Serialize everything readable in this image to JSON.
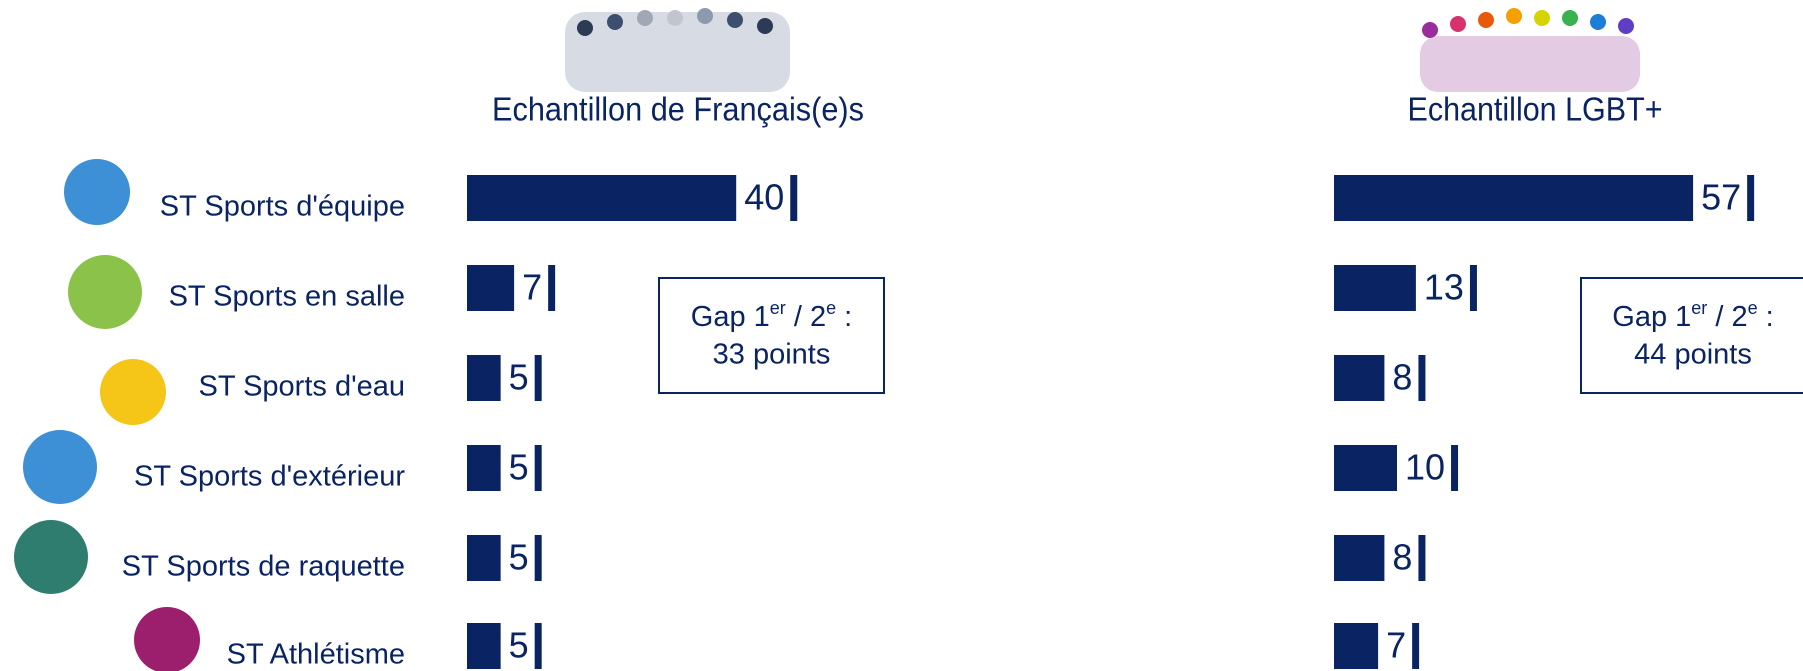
{
  "chart_data": [
    {
      "type": "bar",
      "orientation": "horizontal",
      "title": "Echantillon de Français(e)s",
      "categories": [
        "ST Sports d'équipe",
        "ST Sports en salle",
        "ST Sports d'eau",
        "ST Sports d'extérieur",
        "ST Sports de raquette",
        "ST Athlétisme"
      ],
      "values": [
        40,
        7,
        5,
        5,
        5,
        5
      ],
      "color": "#0a2463",
      "annotation": {
        "line1": [
          "Gap 1",
          "er",
          " / 2",
          "e",
          " :"
        ],
        "line2": "33 points"
      }
    },
    {
      "type": "bar",
      "orientation": "horizontal",
      "title": "Echantillon LGBT+",
      "values": [
        57,
        13,
        8,
        10,
        8,
        7
      ],
      "color": "#0a2463",
      "annotation": {
        "line1": [
          "Gap 1",
          "er",
          " / 2",
          "e",
          " :"
        ],
        "line2": "44 points"
      }
    }
  ]
}
